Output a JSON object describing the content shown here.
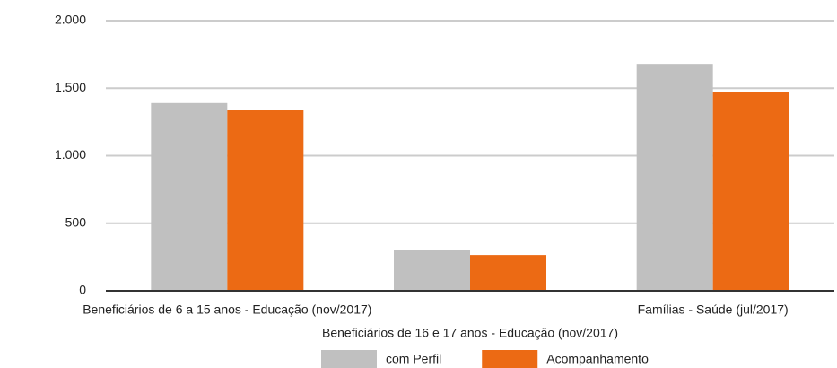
{
  "chart_data": {
    "type": "bar",
    "categories": [
      "Beneficiários de 6 a 15 anos - Educação (nov/2017)",
      "Beneficiários de 16 e 17 anos - Educação (nov/2017)",
      "Famílias - Saúde (jul/2017)"
    ],
    "series": [
      {
        "name": "com Perfil",
        "color": "#c0c0c0",
        "values": [
          1390,
          305,
          1680
        ]
      },
      {
        "name": "Acompanhamento",
        "color": "#ec6a14",
        "values": [
          1340,
          265,
          1470
        ]
      }
    ],
    "ylim": [
      0,
      2000
    ],
    "yticks": [
      0,
      500,
      {
        "value": 1000,
        "label": "1.000"
      },
      {
        "value": 1500,
        "label": "1.500"
      },
      {
        "value": 2000,
        "label": "2.000"
      }
    ],
    "grid": true,
    "legend": "bottom"
  }
}
